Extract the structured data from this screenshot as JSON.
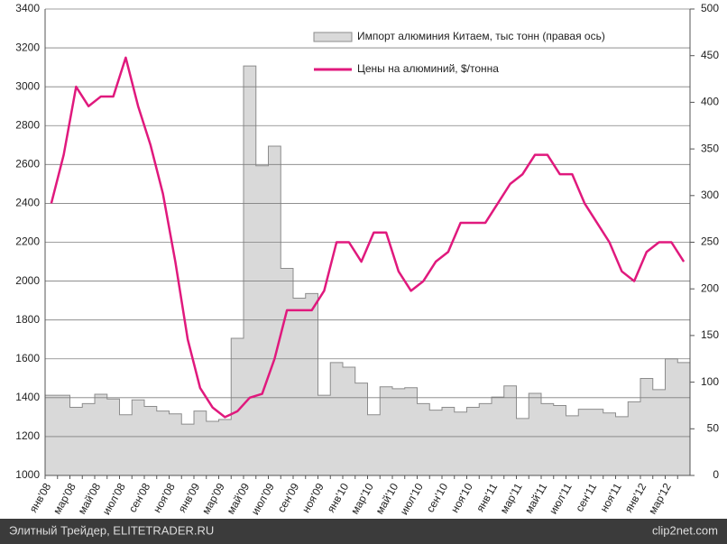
{
  "chart_data": {
    "type": "bar-line",
    "categories": [
      "янв'08",
      null,
      "мар'08",
      null,
      "май'08",
      null,
      "июл'08",
      null,
      "сен'08",
      null,
      "ноя'08",
      null,
      "янв'09",
      null,
      "мар'09",
      null,
      "май'09",
      null,
      "июл'09",
      null,
      "сен'09",
      null,
      "ноя'09",
      null,
      "янв'10",
      null,
      "мар'10",
      null,
      "май'10",
      null,
      "июл'10",
      null,
      "сен'10",
      null,
      "ноя'10",
      null,
      "янв'11",
      null,
      "мар'11",
      null,
      "май'11",
      null,
      "июл'11",
      null,
      "сен'11",
      null,
      "ноя'11",
      null,
      "янв'12",
      null,
      "мар'12",
      null
    ],
    "series": [
      {
        "name": "Импорт алюминия Китаем, тыс тонн (правая ось)",
        "type": "bar",
        "axis": "y2",
        "color": "#d9d9d9",
        "values": [
          86,
          86,
          73,
          77,
          87,
          82,
          65,
          81,
          74,
          69,
          66,
          55,
          69,
          58,
          60,
          147,
          439,
          332,
          353,
          222,
          190,
          195,
          86,
          121,
          116,
          99,
          65,
          95,
          93,
          94,
          77,
          70,
          73,
          68,
          73,
          77,
          84,
          96,
          61,
          88,
          77,
          75,
          64,
          71,
          71,
          67,
          63,
          79,
          104,
          92,
          125,
          121
        ]
      },
      {
        "name": "Цены на алюминий, $/тонна",
        "type": "line",
        "color": "#e0197d",
        "values": [
          2400,
          2650,
          3000,
          2900,
          2950,
          2950,
          3150,
          2900,
          2700,
          2450,
          2100,
          1700,
          1450,
          1350,
          1300,
          1330,
          1400,
          1420,
          1600,
          1850,
          1850,
          1850,
          1950,
          2200,
          2200,
          2100,
          2250,
          2250,
          2050,
          1950,
          2000,
          2100,
          2150,
          2300,
          2300,
          2300,
          2400,
          2500,
          2550,
          2650,
          2650,
          2550,
          2550,
          2400,
          2300,
          2200,
          2050,
          2000,
          2150,
          2200,
          2200,
          2100
        ]
      }
    ],
    "ylim": [
      1000,
      3400
    ],
    "yticks": [
      1000,
      1200,
      1400,
      1600,
      1800,
      2000,
      2200,
      2400,
      2600,
      2800,
      3000,
      3200,
      3400
    ],
    "y2lim": [
      0,
      500
    ],
    "y2ticks": [
      0,
      50,
      100,
      150,
      200,
      250,
      300,
      350,
      400,
      450,
      500
    ],
    "grid": true,
    "legend": "top-right"
  },
  "footer": {
    "left": "Элитный Трейдер, ELITETRADER.RU",
    "right": "clip2net.com"
  }
}
